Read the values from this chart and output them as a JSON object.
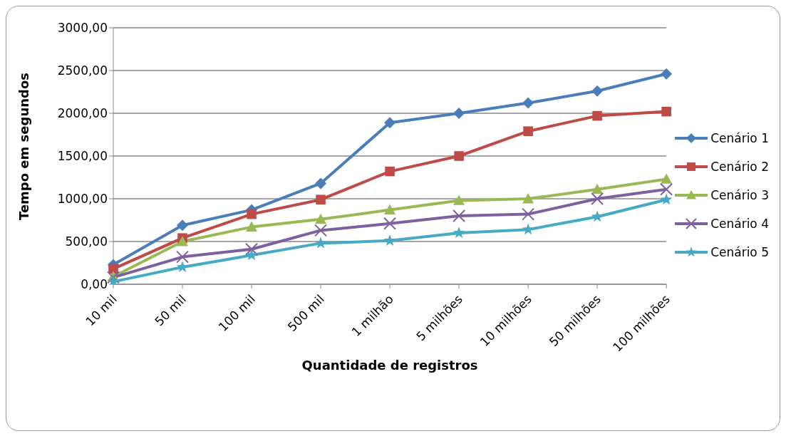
{
  "chart_data": {
    "type": "line",
    "xlabel": "Quantidade de registros",
    "ylabel": "Tempo em segundos",
    "categories": [
      "10 mil",
      "50 mil",
      "100 mil",
      "500 mil",
      "1 milhão",
      "5 milhões",
      "10 milhões",
      "50 milhões",
      "100 milhões"
    ],
    "series": [
      {
        "name": "Cenário 1",
        "color": "#4a7ebb",
        "marker": "diamond",
        "values": [
          230,
          690,
          870,
          1180,
          1890,
          2000,
          2120,
          2260,
          2460
        ]
      },
      {
        "name": "Cenário 2",
        "color": "#be4b48",
        "marker": "square",
        "values": [
          180,
          540,
          820,
          990,
          1320,
          1500,
          1790,
          1970,
          2020
        ]
      },
      {
        "name": "Cenário 3",
        "color": "#98b954",
        "marker": "triangle",
        "values": [
          90,
          500,
          670,
          760,
          870,
          980,
          1000,
          1110,
          1230
        ]
      },
      {
        "name": "Cenário 4",
        "color": "#7d60a0",
        "marker": "cross",
        "values": [
          80,
          320,
          410,
          630,
          710,
          800,
          820,
          1000,
          1110
        ]
      },
      {
        "name": "Cenário 5",
        "color": "#46aac5",
        "marker": "star",
        "values": [
          30,
          200,
          340,
          480,
          510,
          600,
          640,
          790,
          990
        ]
      }
    ],
    "ylim": [
      0,
      3000
    ],
    "yticks": [
      {
        "value": 0,
        "label": "0,00"
      },
      {
        "value": 500,
        "label": "500,00"
      },
      {
        "value": 1000,
        "label": "1000,00"
      },
      {
        "value": 1500,
        "label": "1500,00"
      },
      {
        "value": 2000,
        "label": "2000,00"
      },
      {
        "value": 2500,
        "label": "2500,00"
      },
      {
        "value": 3000,
        "label": "3000,00"
      }
    ],
    "grid": "y",
    "legend": "right",
    "line_style": "solid"
  }
}
